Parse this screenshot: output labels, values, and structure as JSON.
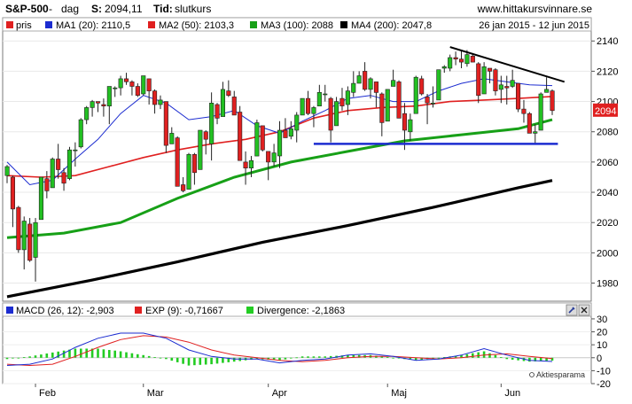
{
  "header": {
    "symbol": "S&P-500",
    "sep1": " - ",
    "interval": "dag",
    "s_label": "S:",
    "s_value": "2094,11",
    "tid_label": "Tid:",
    "tid_value": "slutkurs",
    "site": "www.hittakursvinnare.se"
  },
  "legend_main": {
    "items": [
      {
        "label": "pris",
        "color": "#e02020"
      },
      {
        "label": "MA1 (20): 2110,5",
        "color": "#1c2cd0"
      },
      {
        "label": "MA2 (50): 2103,3",
        "color": "#e02020"
      },
      {
        "label": "MA3 (100): 2088",
        "color": "#17a017"
      },
      {
        "label": "MA4 (200): 2047,8",
        "color": "#000000"
      }
    ],
    "date_range": "26 jan 2015 - 12 jun 2015"
  },
  "legend_macd": {
    "items": [
      {
        "label": "MACD (26, 12): -2,903",
        "color": "#1c2cd0"
      },
      {
        "label": "EXP (9): -0,71667",
        "color": "#e02020"
      },
      {
        "label": "Divergence: -2,1863",
        "color": "#22cc22"
      }
    ]
  },
  "price_tag": "2094",
  "watermark": "Aktiesparama",
  "icons": [
    "wrench-icon",
    "close-icon"
  ],
  "chart_data": {
    "type": "candlestick",
    "x_tick_labels": [
      "Feb",
      "Mar",
      "Apr",
      "Maj",
      "Jun"
    ],
    "price_ticks": [
      1980,
      2000,
      2020,
      2040,
      2060,
      2080,
      2100,
      2120,
      2140
    ],
    "ylim": [
      1968,
      2146
    ],
    "macd_ticks": [
      -20,
      -10,
      0,
      10,
      20,
      30
    ],
    "macd_ylim": [
      -20,
      32
    ],
    "candles": [
      {
        "d": "2015-01-26",
        "o": 2051,
        "h": 2058,
        "l": 2046,
        "c": 2057
      },
      {
        "d": "2015-01-27",
        "o": 2050,
        "h": 2051,
        "l": 2017,
        "c": 2029
      },
      {
        "d": "2015-01-28",
        "o": 2030,
        "h": 2031,
        "l": 2000,
        "c": 2002
      },
      {
        "d": "2015-01-29",
        "o": 2002,
        "h": 2024,
        "l": 1989,
        "c": 2021
      },
      {
        "d": "2015-01-30",
        "o": 2019,
        "h": 2023,
        "l": 1994,
        "c": 1995
      },
      {
        "d": "2015-02-02",
        "o": 1997,
        "h": 2023,
        "l": 1981,
        "c": 2020
      },
      {
        "d": "2015-02-03",
        "o": 2022,
        "h": 2050,
        "l": 2022,
        "c": 2050
      },
      {
        "d": "2015-02-04",
        "o": 2049,
        "h": 2054,
        "l": 2036,
        "c": 2041
      },
      {
        "d": "2015-02-05",
        "o": 2043,
        "h": 2063,
        "l": 2043,
        "c": 2062
      },
      {
        "d": "2015-02-06",
        "o": 2062,
        "h": 2072,
        "l": 2049,
        "c": 2055
      },
      {
        "d": "2015-02-09",
        "o": 2053,
        "h": 2056,
        "l": 2041,
        "c": 2046
      },
      {
        "d": "2015-02-10",
        "o": 2049,
        "h": 2070,
        "l": 2048,
        "c": 2068
      },
      {
        "d": "2015-02-11",
        "o": 2068,
        "h": 2073,
        "l": 2057,
        "c": 2068
      },
      {
        "d": "2015-02-12",
        "o": 2070,
        "h": 2089,
        "l": 2069,
        "c": 2088
      },
      {
        "d": "2015-02-13",
        "o": 2088,
        "h": 2097,
        "l": 2085,
        "c": 2096
      },
      {
        "d": "2015-02-17",
        "o": 2096,
        "h": 2101,
        "l": 2090,
        "c": 2100
      },
      {
        "d": "2015-02-18",
        "o": 2100,
        "h": 2100,
        "l": 2093,
        "c": 2099
      },
      {
        "d": "2015-02-19",
        "o": 2098,
        "h": 2102,
        "l": 2090,
        "c": 2097
      },
      {
        "d": "2015-02-20",
        "o": 2097,
        "h": 2110,
        "l": 2085,
        "c": 2110
      },
      {
        "d": "2015-02-23",
        "o": 2109,
        "h": 2110,
        "l": 2103,
        "c": 2109
      },
      {
        "d": "2015-02-24",
        "o": 2109,
        "h": 2117,
        "l": 2104,
        "c": 2115
      },
      {
        "d": "2015-02-25",
        "o": 2115,
        "h": 2119,
        "l": 2111,
        "c": 2113
      },
      {
        "d": "2015-02-26",
        "o": 2113,
        "h": 2114,
        "l": 2104,
        "c": 2110
      },
      {
        "d": "2015-02-27",
        "o": 2110,
        "h": 2112,
        "l": 2103,
        "c": 2104
      },
      {
        "d": "2015-03-02",
        "o": 2105,
        "h": 2117,
        "l": 2104,
        "c": 2117
      },
      {
        "d": "2015-03-03",
        "o": 2115,
        "h": 2115,
        "l": 2098,
        "c": 2107
      },
      {
        "d": "2015-03-04",
        "o": 2107,
        "h": 2108,
        "l": 2092,
        "c": 2098
      },
      {
        "d": "2015-03-05",
        "o": 2098,
        "h": 2104,
        "l": 2095,
        "c": 2101
      },
      {
        "d": "2015-03-06",
        "o": 2100,
        "h": 2100,
        "l": 2066,
        "c": 2071
      },
      {
        "d": "2015-03-09",
        "o": 2072,
        "h": 2083,
        "l": 2072,
        "c": 2079
      },
      {
        "d": "2015-03-10",
        "o": 2076,
        "h": 2077,
        "l": 2044,
        "c": 2044
      },
      {
        "d": "2015-03-11",
        "o": 2045,
        "h": 2050,
        "l": 2040,
        "c": 2041
      },
      {
        "d": "2015-03-12",
        "o": 2042,
        "h": 2066,
        "l": 2042,
        "c": 2065
      },
      {
        "d": "2015-03-13",
        "o": 2065,
        "h": 2066,
        "l": 2045,
        "c": 2053
      },
      {
        "d": "2015-03-16",
        "o": 2055,
        "h": 2081,
        "l": 2055,
        "c": 2081
      },
      {
        "d": "2015-03-17",
        "o": 2080,
        "h": 2081,
        "l": 2065,
        "c": 2075
      },
      {
        "d": "2015-03-18",
        "o": 2072,
        "h": 2106,
        "l": 2061,
        "c": 2099
      },
      {
        "d": "2015-03-19",
        "o": 2098,
        "h": 2099,
        "l": 2085,
        "c": 2089
      },
      {
        "d": "2015-03-20",
        "o": 2090,
        "h": 2113,
        "l": 2090,
        "c": 2108
      },
      {
        "d": "2015-03-23",
        "o": 2107,
        "h": 2114,
        "l": 2103,
        "c": 2104
      },
      {
        "d": "2015-03-24",
        "o": 2103,
        "h": 2107,
        "l": 2091,
        "c": 2091
      },
      {
        "d": "2015-03-25",
        "o": 2093,
        "h": 2097,
        "l": 2061,
        "c": 2061
      },
      {
        "d": "2015-03-26",
        "o": 2060,
        "h": 2067,
        "l": 2045,
        "c": 2056
      },
      {
        "d": "2015-03-27",
        "o": 2056,
        "h": 2064,
        "l": 2050,
        "c": 2061
      },
      {
        "d": "2015-03-30",
        "o": 2064,
        "h": 2088,
        "l": 2064,
        "c": 2086
      },
      {
        "d": "2015-03-31",
        "o": 2084,
        "h": 2084,
        "l": 2067,
        "c": 2068
      },
      {
        "d": "2015-04-01",
        "o": 2067,
        "h": 2067,
        "l": 2048,
        "c": 2060
      },
      {
        "d": "2015-04-02",
        "o": 2060,
        "h": 2072,
        "l": 2057,
        "c": 2066
      },
      {
        "d": "2015-04-06",
        "o": 2064,
        "h": 2087,
        "l": 2056,
        "c": 2081
      },
      {
        "d": "2015-04-07",
        "o": 2081,
        "h": 2089,
        "l": 2076,
        "c": 2076
      },
      {
        "d": "2015-04-08",
        "o": 2077,
        "h": 2087,
        "l": 2075,
        "c": 2082
      },
      {
        "d": "2015-04-09",
        "o": 2081,
        "h": 2093,
        "l": 2073,
        "c": 2091
      },
      {
        "d": "2015-04-10",
        "o": 2091,
        "h": 2102,
        "l": 2091,
        "c": 2102
      },
      {
        "d": "2015-04-13",
        "o": 2102,
        "h": 2107,
        "l": 2091,
        "c": 2092
      },
      {
        "d": "2015-04-14",
        "o": 2092,
        "h": 2097,
        "l": 2083,
        "c": 2096
      },
      {
        "d": "2015-04-15",
        "o": 2097,
        "h": 2111,
        "l": 2097,
        "c": 2106
      },
      {
        "d": "2015-04-16",
        "o": 2105,
        "h": 2111,
        "l": 2100,
        "c": 2105
      },
      {
        "d": "2015-04-17",
        "o": 2102,
        "h": 2103,
        "l": 2073,
        "c": 2081
      },
      {
        "d": "2015-04-20",
        "o": 2084,
        "h": 2103,
        "l": 2084,
        "c": 2100
      },
      {
        "d": "2015-04-21",
        "o": 2102,
        "h": 2109,
        "l": 2094,
        "c": 2097
      },
      {
        "d": "2015-04-22",
        "o": 2098,
        "h": 2110,
        "l": 2091,
        "c": 2107
      },
      {
        "d": "2015-04-23",
        "o": 2106,
        "h": 2120,
        "l": 2103,
        "c": 2112
      },
      {
        "d": "2015-04-24",
        "o": 2112,
        "h": 2120,
        "l": 2112,
        "c": 2117
      },
      {
        "d": "2015-04-27",
        "o": 2120,
        "h": 2126,
        "l": 2107,
        "c": 2108
      },
      {
        "d": "2015-04-28",
        "o": 2108,
        "h": 2116,
        "l": 2102,
        "c": 2115
      },
      {
        "d": "2015-04-29",
        "o": 2113,
        "h": 2113,
        "l": 2096,
        "c": 2106
      },
      {
        "d": "2015-04-30",
        "o": 2105,
        "h": 2106,
        "l": 2077,
        "c": 2086
      },
      {
        "d": "2015-05-01",
        "o": 2087,
        "h": 2108,
        "l": 2087,
        "c": 2108
      },
      {
        "d": "2015-05-04",
        "o": 2110,
        "h": 2121,
        "l": 2110,
        "c": 2114
      },
      {
        "d": "2015-05-05",
        "o": 2113,
        "h": 2114,
        "l": 2089,
        "c": 2089
      },
      {
        "d": "2015-05-06",
        "o": 2092,
        "h": 2099,
        "l": 2068,
        "c": 2081
      },
      {
        "d": "2015-05-07",
        "o": 2080,
        "h": 2092,
        "l": 2074,
        "c": 2088
      },
      {
        "d": "2015-05-08",
        "o": 2092,
        "h": 2117,
        "l": 2092,
        "c": 2116
      },
      {
        "d": "2015-05-11",
        "o": 2115,
        "h": 2117,
        "l": 2104,
        "c": 2105
      },
      {
        "d": "2015-05-12",
        "o": 2103,
        "h": 2105,
        "l": 2085,
        "c": 2099
      },
      {
        "d": "2015-05-13",
        "o": 2099,
        "h": 2110,
        "l": 2096,
        "c": 2099
      },
      {
        "d": "2015-05-14",
        "o": 2101,
        "h": 2121,
        "l": 2101,
        "c": 2121
      },
      {
        "d": "2015-05-15",
        "o": 2122,
        "h": 2124,
        "l": 2119,
        "c": 2123
      },
      {
        "d": "2015-05-18",
        "o": 2122,
        "h": 2131,
        "l": 2120,
        "c": 2129
      },
      {
        "d": "2015-05-19",
        "o": 2129,
        "h": 2133,
        "l": 2124,
        "c": 2128
      },
      {
        "d": "2015-05-20",
        "o": 2128,
        "h": 2134,
        "l": 2122,
        "c": 2126
      },
      {
        "d": "2015-05-21",
        "o": 2125,
        "h": 2134,
        "l": 2123,
        "c": 2131
      },
      {
        "d": "2015-05-22",
        "o": 2130,
        "h": 2132,
        "l": 2126,
        "c": 2126
      },
      {
        "d": "2015-05-26",
        "o": 2125,
        "h": 2126,
        "l": 2099,
        "c": 2104
      },
      {
        "d": "2015-05-27",
        "o": 2105,
        "h": 2126,
        "l": 2105,
        "c": 2123
      },
      {
        "d": "2015-05-28",
        "o": 2122,
        "h": 2122,
        "l": 2112,
        "c": 2120
      },
      {
        "d": "2015-05-29",
        "o": 2121,
        "h": 2122,
        "l": 2104,
        "c": 2107
      },
      {
        "d": "2015-06-01",
        "o": 2108,
        "h": 2117,
        "l": 2099,
        "c": 2111
      },
      {
        "d": "2015-06-02",
        "o": 2110,
        "h": 2117,
        "l": 2098,
        "c": 2109
      },
      {
        "d": "2015-06-03",
        "o": 2110,
        "h": 2121,
        "l": 2109,
        "c": 2114
      },
      {
        "d": "2015-06-04",
        "o": 2112,
        "h": 2112,
        "l": 2093,
        "c": 2095
      },
      {
        "d": "2015-06-05",
        "o": 2095,
        "h": 2101,
        "l": 2086,
        "c": 2092
      },
      {
        "d": "2015-06-08",
        "o": 2092,
        "h": 2093,
        "l": 2079,
        "c": 2079
      },
      {
        "d": "2015-06-09",
        "o": 2079,
        "h": 2085,
        "l": 2072,
        "c": 2080
      },
      {
        "d": "2015-06-10",
        "o": 2081,
        "h": 2106,
        "l": 2081,
        "c": 2105
      },
      {
        "d": "2015-06-11",
        "o": 2106,
        "h": 2116,
        "l": 2106,
        "c": 2108
      },
      {
        "d": "2015-06-12",
        "o": 2107,
        "h": 2108,
        "l": 2091,
        "c": 2094
      }
    ],
    "month_starts": [
      "2015-02-02",
      "2015-03-02",
      "2015-04-01",
      "2015-05-01",
      "2015-06-01"
    ],
    "ma1_20": [
      [
        0,
        2060
      ],
      [
        4,
        2045
      ],
      [
        8,
        2048
      ],
      [
        12,
        2062
      ],
      [
        16,
        2075
      ],
      [
        20,
        2092
      ],
      [
        24,
        2104
      ],
      [
        28,
        2099
      ],
      [
        32,
        2088
      ],
      [
        36,
        2090
      ],
      [
        40,
        2094
      ],
      [
        44,
        2084
      ],
      [
        48,
        2079
      ],
      [
        52,
        2087
      ],
      [
        56,
        2094
      ],
      [
        60,
        2102
      ],
      [
        64,
        2104
      ],
      [
        68,
        2100
      ],
      [
        72,
        2100
      ],
      [
        76,
        2107
      ],
      [
        80,
        2112
      ],
      [
        84,
        2115
      ],
      [
        88,
        2113
      ],
      [
        92,
        2111
      ],
      [
        96,
        2110.5
      ]
    ],
    "ma2_50": [
      [
        0,
        2051
      ],
      [
        6,
        2050
      ],
      [
        12,
        2051
      ],
      [
        18,
        2057
      ],
      [
        24,
        2063
      ],
      [
        30,
        2068
      ],
      [
        36,
        2072
      ],
      [
        42,
        2075
      ],
      [
        48,
        2080
      ],
      [
        54,
        2089
      ],
      [
        60,
        2094
      ],
      [
        66,
        2096
      ],
      [
        72,
        2097
      ],
      [
        78,
        2100
      ],
      [
        84,
        2101
      ],
      [
        90,
        2102
      ],
      [
        96,
        2103.3
      ]
    ],
    "ma3_100": [
      [
        0,
        2010
      ],
      [
        10,
        2013
      ],
      [
        20,
        2020
      ],
      [
        30,
        2036
      ],
      [
        40,
        2050
      ],
      [
        50,
        2060
      ],
      [
        60,
        2067
      ],
      [
        70,
        2074
      ],
      [
        80,
        2078
      ],
      [
        90,
        2082
      ],
      [
        96,
        2088
      ]
    ],
    "ma4_200": [
      [
        0,
        1971
      ],
      [
        15,
        1982
      ],
      [
        30,
        1994
      ],
      [
        45,
        2007
      ],
      [
        60,
        2018
      ],
      [
        75,
        2030
      ],
      [
        90,
        2043
      ],
      [
        96,
        2047.8
      ]
    ],
    "trendline_resistance": {
      "from": {
        "d": "2015-05-18",
        "y": 2136
      },
      "to": {
        "d": "2015-06-15",
        "y": 2113
      }
    },
    "support_line": {
      "from": {
        "d": "2015-04-16",
        "y": 2072
      },
      "to": {
        "d": "2015-06-12",
        "y": 2072
      }
    },
    "macd_line": [
      [
        0,
        -6
      ],
      [
        4,
        -5
      ],
      [
        8,
        -1
      ],
      [
        12,
        8
      ],
      [
        16,
        15
      ],
      [
        20,
        19
      ],
      [
        24,
        19
      ],
      [
        28,
        15
      ],
      [
        32,
        6
      ],
      [
        36,
        1
      ],
      [
        40,
        -1
      ],
      [
        44,
        -1
      ],
      [
        48,
        -4
      ],
      [
        52,
        -2
      ],
      [
        56,
        -1
      ],
      [
        60,
        2
      ],
      [
        64,
        3
      ],
      [
        68,
        1
      ],
      [
        72,
        -2
      ],
      [
        76,
        -1
      ],
      [
        80,
        2
      ],
      [
        84,
        7
      ],
      [
        88,
        2
      ],
      [
        92,
        -2
      ],
      [
        96,
        -2.9
      ]
    ],
    "exp_line": [
      [
        0,
        -5
      ],
      [
        4,
        -6
      ],
      [
        8,
        -5
      ],
      [
        12,
        1
      ],
      [
        16,
        8
      ],
      [
        20,
        14
      ],
      [
        24,
        17
      ],
      [
        28,
        16
      ],
      [
        32,
        12
      ],
      [
        36,
        6
      ],
      [
        40,
        2
      ],
      [
        44,
        0
      ],
      [
        48,
        -2
      ],
      [
        52,
        -3
      ],
      [
        56,
        -2
      ],
      [
        60,
        0
      ],
      [
        64,
        1
      ],
      [
        68,
        1
      ],
      [
        72,
        0
      ],
      [
        76,
        -1
      ],
      [
        80,
        0
      ],
      [
        84,
        2
      ],
      [
        88,
        3
      ],
      [
        92,
        1
      ],
      [
        96,
        -0.7
      ]
    ],
    "divergence": [
      [
        0,
        -1
      ],
      [
        4,
        1
      ],
      [
        8,
        4
      ],
      [
        12,
        7
      ],
      [
        16,
        7
      ],
      [
        20,
        5
      ],
      [
        24,
        2
      ],
      [
        28,
        -1
      ],
      [
        32,
        -6
      ],
      [
        36,
        -5
      ],
      [
        40,
        -3
      ],
      [
        44,
        -1
      ],
      [
        48,
        -2
      ],
      [
        52,
        1
      ],
      [
        56,
        1
      ],
      [
        60,
        2
      ],
      [
        64,
        2
      ],
      [
        68,
        0
      ],
      [
        72,
        -2
      ],
      [
        76,
        0
      ],
      [
        80,
        2
      ],
      [
        84,
        5
      ],
      [
        88,
        -1
      ],
      [
        92,
        -3
      ],
      [
        96,
        -2.2
      ]
    ]
  }
}
